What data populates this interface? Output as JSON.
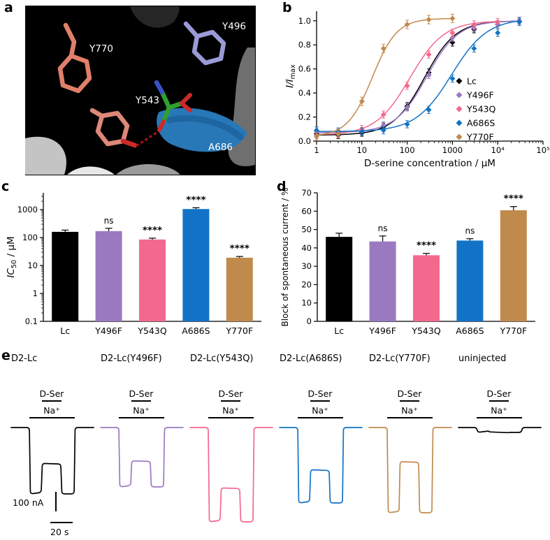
{
  "figure_labels": {
    "a": "a",
    "b": "b",
    "c": "c",
    "d": "d",
    "e": "e"
  },
  "panel_a": {
    "residues": [
      {
        "id": "y770",
        "label": "Y770",
        "color": "#e0806a"
      },
      {
        "id": "y543",
        "label": "Y543",
        "color": "#dd8878"
      },
      {
        "id": "y496",
        "label": "Y496",
        "color": "#9a9ad6"
      },
      {
        "id": "a686",
        "label": "A686",
        "color": "#2878b8"
      }
    ],
    "ligand_color": "#2fa02f",
    "hbond_color": "#a81616"
  },
  "chart_data": [
    {
      "id": "b",
      "type": "scatter",
      "xlabel": "D-serine concentration / μM",
      "ylabel": {
        "main": "I/I",
        "sub": "max",
        "italic_main": true
      },
      "xscale": "log",
      "xlim": [
        1,
        100000
      ],
      "ylim": [
        0,
        1.08
      ],
      "xticks": [
        1,
        10,
        100,
        1000,
        10000,
        100000
      ],
      "xtick_labels": [
        "1",
        "10",
        "100",
        "1000",
        "10⁴",
        "10⁵"
      ],
      "yticks": [
        0,
        0.2,
        0.4,
        0.6,
        0.8,
        1.0
      ],
      "ytick_labels": [
        "0.0",
        "0.2",
        "0.4",
        "0.6",
        "0.8",
        "1.0"
      ],
      "legend_position": "right-middle",
      "series": [
        {
          "name": "Lc",
          "color": "#000000",
          "ec50": 240,
          "hill": 1.25,
          "bottom": 0.05,
          "top": 1.0,
          "x": [
            1,
            3,
            10,
            30,
            100,
            300,
            1000,
            3000,
            10000,
            30000
          ],
          "y": [
            0.06,
            0.05,
            0.07,
            0.12,
            0.29,
            0.57,
            0.82,
            0.93,
            0.97,
            1.0
          ],
          "err": 0.03
        },
        {
          "name": "Y496F",
          "color": "#9b79c1",
          "ec50": 270,
          "hill": 1.25,
          "bottom": 0.07,
          "top": 1.0,
          "x": [
            1,
            3,
            10,
            30,
            100,
            300,
            1000,
            3000,
            10000,
            30000
          ],
          "y": [
            0.08,
            0.07,
            0.08,
            0.13,
            0.28,
            0.55,
            0.86,
            0.94,
            0.97,
            1.0
          ],
          "err": 0.03
        },
        {
          "name": "Y543Q",
          "color": "#f3688d",
          "ec50": 115,
          "hill": 1.15,
          "bottom": 0.05,
          "top": 1.0,
          "x": [
            1,
            3,
            10,
            30,
            100,
            300,
            1000,
            3000,
            10000
          ],
          "y": [
            0.05,
            0.06,
            0.1,
            0.22,
            0.46,
            0.72,
            0.9,
            0.97,
            0.99
          ],
          "err": 0.03
        },
        {
          "name": "A686S",
          "color": "#1273c6",
          "ec50": 950,
          "hill": 1.1,
          "bottom": 0.08,
          "top": 1.02,
          "x": [
            1,
            3,
            10,
            30,
            100,
            300,
            1000,
            3000,
            10000,
            30000
          ],
          "y": [
            0.09,
            0.08,
            0.08,
            0.09,
            0.14,
            0.26,
            0.52,
            0.77,
            0.9,
            0.99
          ],
          "err": 0.03
        },
        {
          "name": "Y770F",
          "color": "#c18a4d",
          "ec50": 17,
          "hill": 1.6,
          "bottom": 0.04,
          "top": 1.02,
          "x": [
            1,
            3,
            10,
            30,
            100,
            300,
            1000
          ],
          "y": [
            0.04,
            0.06,
            0.33,
            0.77,
            0.97,
            1.01,
            1.02
          ],
          "err": 0.035
        }
      ]
    },
    {
      "id": "c",
      "type": "bar",
      "yscale": "log",
      "ylabel": {
        "main": "IC",
        "sub": "50",
        "post": " / μM",
        "italic_main": true
      },
      "ylim": [
        0.1,
        4000
      ],
      "yticks": [
        0.1,
        1,
        10,
        100,
        1000
      ],
      "ytick_labels": [
        "0.1",
        "1",
        "10",
        "100",
        "1000"
      ],
      "categories": [
        "Lc",
        "Y496F",
        "Y543Q",
        "A686S",
        "Y770F"
      ],
      "values": [
        160,
        170,
        85,
        1050,
        19
      ],
      "errors": [
        25,
        45,
        10,
        120,
        2
      ],
      "annotations": [
        "",
        "ns",
        "****",
        "****",
        "****"
      ],
      "colors": [
        "#000000",
        "#9b79c1",
        "#f3688d",
        "#1273c6",
        "#c18a4d"
      ]
    },
    {
      "id": "d",
      "type": "bar",
      "yscale": "linear",
      "ylabel": {
        "main": "Block of spontaneous current / %"
      },
      "ylim": [
        0,
        70
      ],
      "yticks": [
        0,
        10,
        20,
        30,
        40,
        50,
        60,
        70
      ],
      "ytick_labels": [
        "0",
        "10",
        "20",
        "30",
        "40",
        "50",
        "60",
        "70"
      ],
      "categories": [
        "Lc",
        "Y496F",
        "Y543Q",
        "A686S",
        "Y770F"
      ],
      "values": [
        46,
        43.5,
        36,
        44,
        60.5
      ],
      "errors": [
        2,
        3,
        1,
        1,
        2
      ],
      "annotations": [
        "",
        "ns",
        "****",
        "ns",
        "****"
      ],
      "colors": [
        "#000000",
        "#9b79c1",
        "#f3688d",
        "#1273c6",
        "#c18a4d"
      ]
    }
  ],
  "panel_e": {
    "columns": [
      {
        "title": "D2-Lc",
        "color": "#000000",
        "dser": "D-Ser",
        "na": "Na⁺",
        "amp": 95,
        "block": 0.46
      },
      {
        "title": "D2-Lc(Y496F)",
        "color": "#9b79c1",
        "dser": "D-Ser",
        "na": "Na⁺",
        "amp": 85,
        "block": 0.44
      },
      {
        "title": "D2-Lc(Y543Q)",
        "color": "#f3688d",
        "dser": "D-Ser",
        "na": "Na⁺",
        "amp": 135,
        "block": 0.36
      },
      {
        "title": "D2-Lc(A686S)",
        "color": "#1273c6",
        "dser": "D-Ser",
        "na": "Na⁺",
        "amp": 108,
        "block": 0.44
      },
      {
        "title": "D2-Lc(Y770F)",
        "color": "#c18a4d",
        "dser": "D-Ser",
        "na": "Na⁺",
        "amp": 122,
        "block": 0.6
      },
      {
        "title": "uninjected",
        "color": "#000000",
        "dser": "D-Ser",
        "na": "Na⁺",
        "amp": 7,
        "block": 0.1
      }
    ],
    "scalebar": {
      "current": "100 nA",
      "time": "20 s"
    }
  }
}
